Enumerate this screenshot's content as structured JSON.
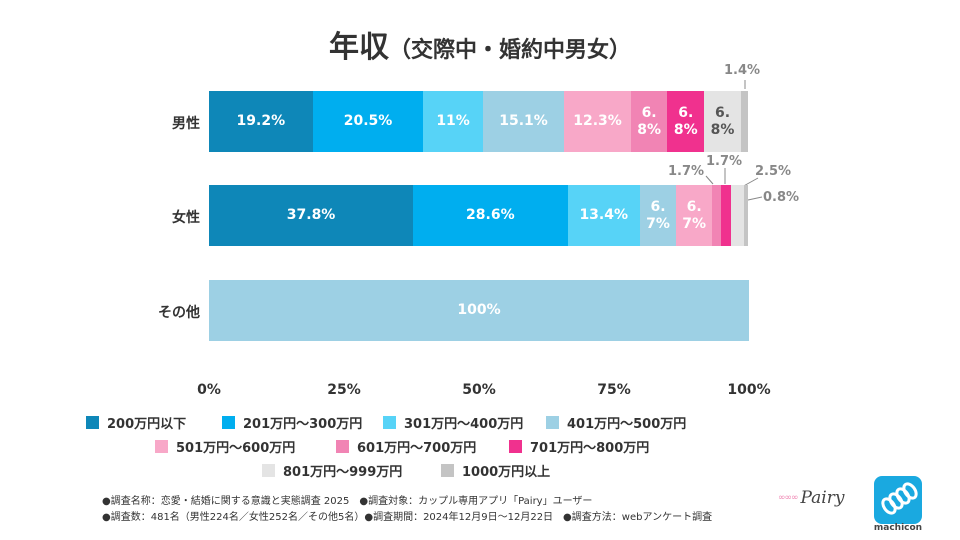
{
  "title": {
    "main": "年収",
    "sub": "（交際中・婚約中男女）"
  },
  "chart_data": {
    "type": "bar",
    "orientation": "horizontal",
    "stacked": true,
    "title": "年収（交際中・婚約中男女）",
    "categories": [
      "男性",
      "女性",
      "その他"
    ],
    "xlim": [
      0,
      100
    ],
    "xticks": [
      "0%",
      "25%",
      "50%",
      "75%",
      "100%"
    ],
    "series": [
      {
        "name": "200万円以下",
        "color": "#0e87b8",
        "values": [
          19.2,
          37.8,
          0
        ],
        "labels": [
          "19.2%",
          "37.8%",
          ""
        ]
      },
      {
        "name": "201万円～300万円",
        "color": "#00aeef",
        "values": [
          20.5,
          28.6,
          0
        ],
        "labels": [
          "20.5%",
          "28.6%",
          ""
        ]
      },
      {
        "name": "301万円～400万円",
        "color": "#57d3f7",
        "values": [
          11,
          13.4,
          0
        ],
        "labels": [
          "11%",
          "13.4%",
          ""
        ]
      },
      {
        "name": "401万円～500万円",
        "color": "#9dd0e4",
        "values": [
          15.1,
          6.7,
          100
        ],
        "labels": [
          "15.1%",
          "6.7%",
          "100%"
        ]
      },
      {
        "name": "501万円～600万円",
        "color": "#f8a8c8",
        "values": [
          12.3,
          6.7,
          0
        ],
        "labels": [
          "12.3%",
          "6.7%",
          ""
        ]
      },
      {
        "name": "601万円～700万円",
        "color": "#f184b4",
        "values": [
          6.8,
          1.7,
          0
        ],
        "labels": [
          "6.8%",
          "1.7%",
          ""
        ]
      },
      {
        "name": "701万円～800万円",
        "color": "#f0318e",
        "values": [
          6.8,
          1.7,
          0
        ],
        "labels": [
          "6.8%",
          "1.7%",
          ""
        ]
      },
      {
        "name": "801万円～999万円",
        "color": "#e4e4e4",
        "values": [
          6.8,
          2.5,
          0
        ],
        "labels": [
          "6.8%",
          "2.5%",
          ""
        ]
      },
      {
        "name": "1000万円以上",
        "color": "#c4c4c4",
        "values": [
          1.4,
          0.8,
          0
        ],
        "labels": [
          "1.4%",
          "0.8%",
          ""
        ]
      }
    ]
  },
  "footnotes": [
    "●調査名称：恋愛・結婚に関する意識と実態調査 2025　●調査対象：カップル専用アプリ「Pairy」ユーザー",
    "●調査数：481名（男性224名／女性252名／その他5名）●調査期間：2024年12月9日～12月22日　●調査方法：webアンケート調査"
  ],
  "logos": {
    "pairy": "Pairy",
    "pairy_mark": "∞∞∞",
    "machicon": "machicon"
  }
}
